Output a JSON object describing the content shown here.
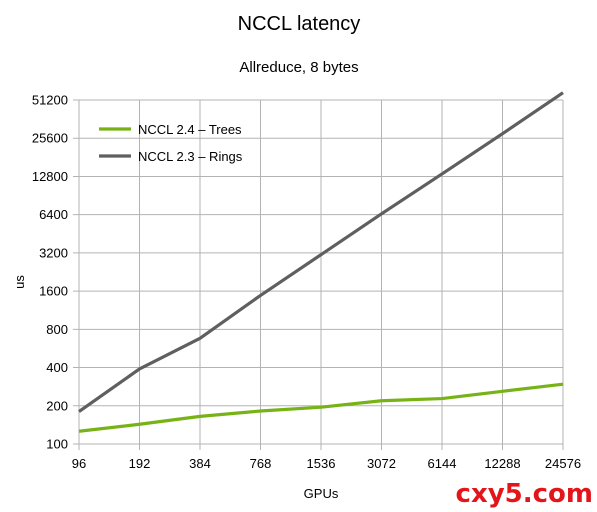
{
  "chart_data": {
    "type": "line",
    "title": "NCCL latency",
    "subtitle": "Allreduce, 8 bytes",
    "xlabel": "GPUs",
    "ylabel": "us",
    "categories": [
      "96",
      "192",
      "384",
      "768",
      "1536",
      "3072",
      "6144",
      "12288",
      "24576"
    ],
    "y_ticks": [
      100,
      200,
      400,
      800,
      1600,
      3200,
      6400,
      12800,
      25600,
      51200
    ],
    "y_scale": "log2",
    "ylim": [
      100,
      51200
    ],
    "grid": true,
    "legend_position": "top-left",
    "series": [
      {
        "name": "NCCL 2.4 – Trees",
        "color": "#77b316",
        "values": [
          126,
          143,
          165,
          182,
          195,
          219,
          228,
          260,
          296
        ]
      },
      {
        "name": "NCCL 2.3 – Rings",
        "color": "#5f5f5f",
        "values": [
          180,
          390,
          680,
          1480,
          3100,
          6500,
          13400,
          27800,
          58500
        ]
      }
    ]
  },
  "watermark": {
    "text": "cxy5.com",
    "color": "#e3151b"
  }
}
